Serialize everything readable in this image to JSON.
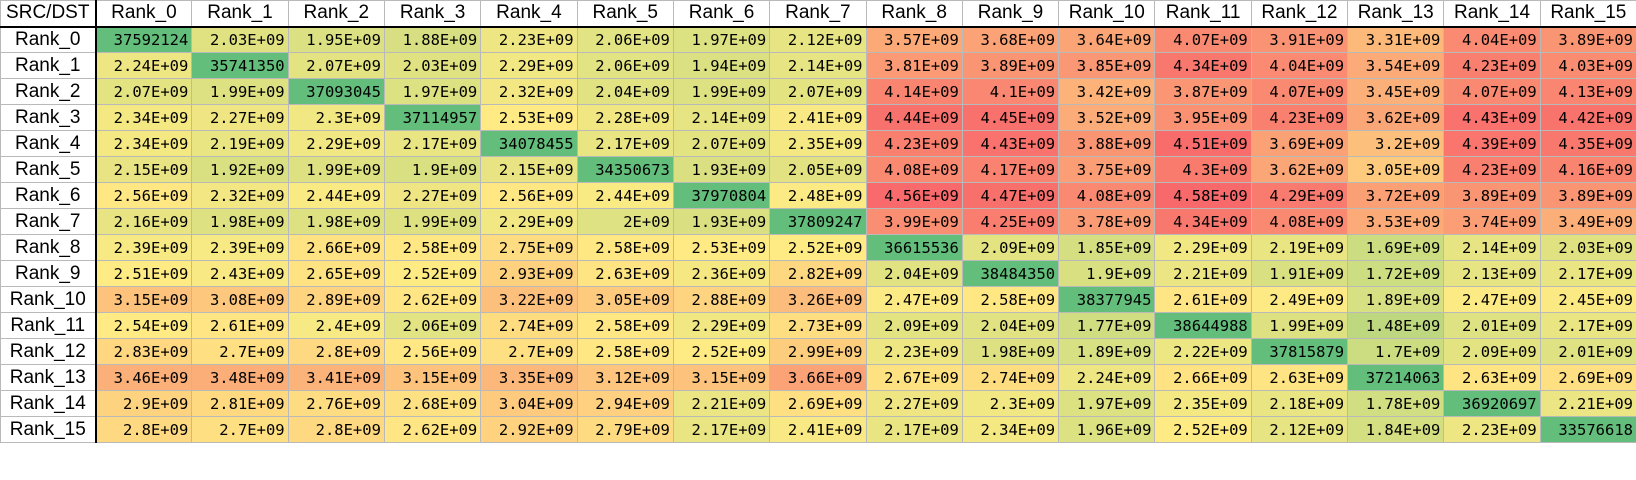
{
  "chart_data": {
    "type": "heatmap",
    "corner_label": "SRC/DST",
    "columns": [
      "Rank_0",
      "Rank_1",
      "Rank_2",
      "Rank_3",
      "Rank_4",
      "Rank_5",
      "Rank_6",
      "Rank_7",
      "Rank_8",
      "Rank_9",
      "Rank_10",
      "Rank_11",
      "Rank_12",
      "Rank_13",
      "Rank_14",
      "Rank_15"
    ],
    "rows": [
      "Rank_0",
      "Rank_1",
      "Rank_2",
      "Rank_3",
      "Rank_4",
      "Rank_5",
      "Rank_6",
      "Rank_7",
      "Rank_8",
      "Rank_9",
      "Rank_10",
      "Rank_11",
      "Rank_12",
      "Rank_13",
      "Rank_14",
      "Rank_15"
    ],
    "cells": [
      [
        "37592124",
        "2.03E+09",
        "1.95E+09",
        "1.88E+09",
        "2.23E+09",
        "2.06E+09",
        "1.97E+09",
        "2.12E+09",
        "3.57E+09",
        "3.68E+09",
        "3.64E+09",
        "4.07E+09",
        "3.91E+09",
        "3.31E+09",
        "4.04E+09",
        "3.89E+09"
      ],
      [
        "2.24E+09",
        "35741350",
        "2.07E+09",
        "2.03E+09",
        "2.29E+09",
        "2.06E+09",
        "1.94E+09",
        "2.14E+09",
        "3.81E+09",
        "3.89E+09",
        "3.85E+09",
        "4.34E+09",
        "4.04E+09",
        "3.54E+09",
        "4.23E+09",
        "4.03E+09"
      ],
      [
        "2.07E+09",
        "1.99E+09",
        "37093045",
        "1.97E+09",
        "2.32E+09",
        "2.04E+09",
        "1.99E+09",
        "2.07E+09",
        "4.14E+09",
        "4.1E+09",
        "3.42E+09",
        "3.87E+09",
        "4.07E+09",
        "3.45E+09",
        "4.07E+09",
        "4.13E+09"
      ],
      [
        "2.34E+09",
        "2.27E+09",
        "2.3E+09",
        "37114957",
        "2.53E+09",
        "2.28E+09",
        "2.14E+09",
        "2.41E+09",
        "4.44E+09",
        "4.45E+09",
        "3.52E+09",
        "3.95E+09",
        "4.23E+09",
        "3.62E+09",
        "4.43E+09",
        "4.42E+09"
      ],
      [
        "2.34E+09",
        "2.19E+09",
        "2.29E+09",
        "2.17E+09",
        "34078455",
        "2.17E+09",
        "2.07E+09",
        "2.35E+09",
        "4.23E+09",
        "4.43E+09",
        "3.88E+09",
        "4.51E+09",
        "3.69E+09",
        "3.2E+09",
        "4.39E+09",
        "4.35E+09"
      ],
      [
        "2.15E+09",
        "1.92E+09",
        "1.99E+09",
        "1.9E+09",
        "2.15E+09",
        "34350673",
        "1.93E+09",
        "2.05E+09",
        "4.08E+09",
        "4.17E+09",
        "3.75E+09",
        "4.3E+09",
        "3.62E+09",
        "3.05E+09",
        "4.23E+09",
        "4.16E+09"
      ],
      [
        "2.56E+09",
        "2.32E+09",
        "2.44E+09",
        "2.27E+09",
        "2.56E+09",
        "2.44E+09",
        "37970804",
        "2.48E+09",
        "4.56E+09",
        "4.47E+09",
        "4.08E+09",
        "4.58E+09",
        "4.29E+09",
        "3.72E+09",
        "3.89E+09",
        "3.89E+09"
      ],
      [
        "2.16E+09",
        "1.98E+09",
        "1.98E+09",
        "1.99E+09",
        "2.29E+09",
        "2E+09",
        "1.93E+09",
        "37809247",
        "3.99E+09",
        "4.25E+09",
        "3.78E+09",
        "4.34E+09",
        "4.08E+09",
        "3.53E+09",
        "3.74E+09",
        "3.49E+09"
      ],
      [
        "2.39E+09",
        "2.39E+09",
        "2.66E+09",
        "2.58E+09",
        "2.75E+09",
        "2.58E+09",
        "2.53E+09",
        "2.52E+09",
        "36615536",
        "2.09E+09",
        "1.85E+09",
        "2.29E+09",
        "2.19E+09",
        "1.69E+09",
        "2.14E+09",
        "2.03E+09"
      ],
      [
        "2.51E+09",
        "2.43E+09",
        "2.65E+09",
        "2.52E+09",
        "2.93E+09",
        "2.63E+09",
        "2.36E+09",
        "2.82E+09",
        "2.04E+09",
        "38484350",
        "1.9E+09",
        "2.21E+09",
        "1.91E+09",
        "1.72E+09",
        "2.13E+09",
        "2.17E+09"
      ],
      [
        "3.15E+09",
        "3.08E+09",
        "2.89E+09",
        "2.62E+09",
        "3.22E+09",
        "3.05E+09",
        "2.88E+09",
        "3.26E+09",
        "2.47E+09",
        "2.58E+09",
        "38377945",
        "2.61E+09",
        "2.49E+09",
        "1.89E+09",
        "2.47E+09",
        "2.45E+09"
      ],
      [
        "2.54E+09",
        "2.61E+09",
        "2.4E+09",
        "2.06E+09",
        "2.74E+09",
        "2.58E+09",
        "2.29E+09",
        "2.73E+09",
        "2.09E+09",
        "2.04E+09",
        "1.77E+09",
        "38644988",
        "1.99E+09",
        "1.48E+09",
        "2.01E+09",
        "2.17E+09"
      ],
      [
        "2.83E+09",
        "2.7E+09",
        "2.8E+09",
        "2.56E+09",
        "2.7E+09",
        "2.58E+09",
        "2.52E+09",
        "2.99E+09",
        "2.23E+09",
        "1.98E+09",
        "1.89E+09",
        "2.22E+09",
        "37815879",
        "1.7E+09",
        "2.09E+09",
        "2.01E+09"
      ],
      [
        "3.46E+09",
        "3.48E+09",
        "3.41E+09",
        "3.15E+09",
        "3.35E+09",
        "3.12E+09",
        "3.15E+09",
        "3.66E+09",
        "2.67E+09",
        "2.74E+09",
        "2.24E+09",
        "2.66E+09",
        "2.63E+09",
        "37214063",
        "2.63E+09",
        "2.69E+09"
      ],
      [
        "2.9E+09",
        "2.81E+09",
        "2.76E+09",
        "2.68E+09",
        "3.04E+09",
        "2.94E+09",
        "2.21E+09",
        "2.69E+09",
        "2.27E+09",
        "2.3E+09",
        "1.97E+09",
        "2.35E+09",
        "2.18E+09",
        "1.78E+09",
        "36920697",
        "2.21E+09"
      ],
      [
        "2.8E+09",
        "2.7E+09",
        "2.8E+09",
        "2.62E+09",
        "2.92E+09",
        "2.79E+09",
        "2.17E+09",
        "2.41E+09",
        "2.17E+09",
        "2.34E+09",
        "1.96E+09",
        "2.52E+09",
        "2.12E+09",
        "1.84E+09",
        "2.23E+09",
        "33576618"
      ]
    ],
    "colors": {
      "low": "#63be7b",
      "mid": "#ffeb84",
      "high": "#f8696b"
    }
  }
}
